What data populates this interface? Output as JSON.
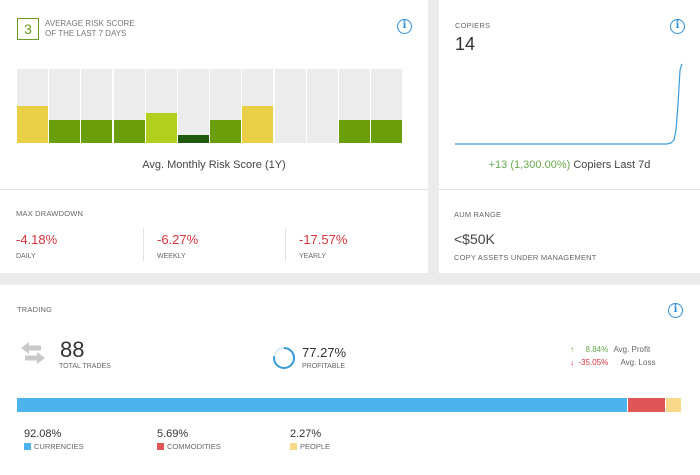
{
  "risk": {
    "score": "3",
    "title_line1": "AVERAGE RISK SCORE",
    "title_line2": "OF THE LAST 7 DAYS",
    "caption": "Avg. Monthly Risk Score (1Y)",
    "bars": [
      {
        "level": 0.5,
        "color": "#e8cf45"
      },
      {
        "level": 0.31,
        "color": "#6a9e0a"
      },
      {
        "level": 0.31,
        "color": "#6a9e0a"
      },
      {
        "level": 0.31,
        "color": "#6a9e0a"
      },
      {
        "level": 0.4,
        "color": "#b3cf1d"
      },
      {
        "level": 0.11,
        "color": "#1f5a0f"
      },
      {
        "level": 0.31,
        "color": "#6a9e0a"
      },
      {
        "level": 0.5,
        "color": "#e8cf45"
      },
      {
        "level": 0,
        "color": "#6a9e0a"
      },
      {
        "level": 0,
        "color": "#6a9e0a"
      },
      {
        "level": 0.31,
        "color": "#6a9e0a"
      },
      {
        "level": 0.31,
        "color": "#6a9e0a"
      }
    ]
  },
  "drawdown": {
    "title": "MAX DRAWDOWN",
    "daily": {
      "value": "-4.18%",
      "label": "DAILY"
    },
    "weekly": {
      "value": "-6.27%",
      "label": "WEEKLY"
    },
    "yearly": {
      "value": "-17.57%",
      "label": "YEARLY"
    }
  },
  "copiers": {
    "title": "COPIERS",
    "count": "14",
    "delta": "+13 (1,300.00%)",
    "delta_suffix": " Copiers Last 7d",
    "line_color": "#3a9ad9"
  },
  "aum": {
    "title": "AUM RANGE",
    "value": "<$50K",
    "subtitle": "COPY ASSETS UNDER MANAGEMENT"
  },
  "trading": {
    "title": "TRADING",
    "total_trades": "88",
    "total_trades_label": "TOTAL TRADES",
    "profitable_pct": "77.27%",
    "profitable_fraction": 0.7727,
    "profitable_label": "PROFITABLE",
    "avg_profit_value": "8.84%",
    "avg_profit_label": "Avg. Profit",
    "avg_loss_value": "-35.05%",
    "avg_loss_label": "Avg. Loss",
    "allocation": [
      {
        "pct": "92.08%",
        "fraction": 0.9208,
        "label": "CURRENCIES",
        "color": "#4cb3ec"
      },
      {
        "pct": "5.69%",
        "fraction": 0.0569,
        "label": "COMMODITIES",
        "color": "#e05555"
      },
      {
        "pct": "2.27%",
        "fraction": 0.0227,
        "label": "PEOPLE",
        "color": "#f8d98a"
      }
    ]
  },
  "colors": {
    "positive": "#6aa84f",
    "negative": "#d8333e",
    "accent": "#2f8fd8"
  },
  "icons": {
    "info": "info-icon",
    "trades": "swap-arrows-icon",
    "up": "arrow-up-icon",
    "down": "arrow-down-icon"
  }
}
